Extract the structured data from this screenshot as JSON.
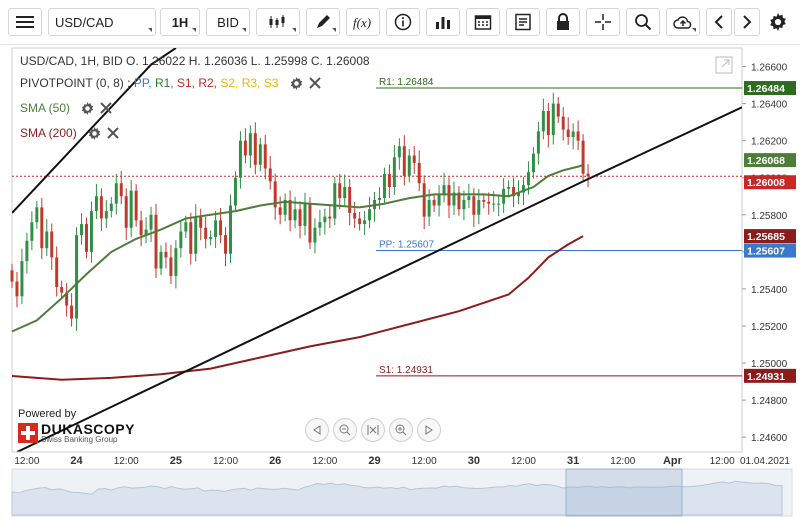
{
  "toolbar": {
    "symbol": "USD/CAD",
    "timeframe": "1H",
    "price_type": "BID"
  },
  "legend": {
    "ohlc_text": "USD/CAD, 1H, BID   O. 1.26022 H. 1.26036 L. 1.25998 C. 1.26008",
    "pivot_title": "PIVOTPOINT (0, 8)",
    "pivot_items": [
      {
        "label": "PP",
        "color": "#3a78c9"
      },
      {
        "label": "R1",
        "color": "#2e7d32"
      },
      {
        "label": "S1",
        "color": "#c62828"
      },
      {
        "label": "R2",
        "color": "#c62828"
      },
      {
        "label": "S2",
        "color": "#f4b400"
      },
      {
        "label": "R3",
        "color": "#f4b400"
      },
      {
        "label": "S3",
        "color": "#f4b400"
      }
    ],
    "sma50": "SMA (50)",
    "sma200": "SMA (200)"
  },
  "branding": {
    "powered_by": "Powered by",
    "logo": "DUKASCOPY",
    "sub": "Swiss Banking Group"
  },
  "colors": {
    "up": "#2f8f46",
    "down": "#c0392b",
    "sma50": "#4e7d3a",
    "sma200": "#8b1c1c",
    "r1": "#2e6b1f",
    "pp": "#3a78c9",
    "s1": "#8b1c1c",
    "current": "#c62828"
  },
  "chart_data": {
    "type": "candlestick",
    "symbol": "USD/CAD",
    "timeframe": "1H",
    "last": {
      "open": 1.26022,
      "high": 1.26036,
      "low": 1.25998,
      "close": 1.26008
    },
    "ylim": [
      1.2452,
      1.267
    ],
    "y_ticks": [
      "1.26600",
      "1.26400",
      "1.26200",
      "1.26000",
      "1.25800",
      "1.25600",
      "1.25400",
      "1.25200",
      "1.25000",
      "1.24800",
      "1.24600"
    ],
    "x_labels": [
      {
        "label": "12:00",
        "t": 3
      },
      {
        "label": "24",
        "t": 13
      },
      {
        "label": "12:00",
        "t": 23
      },
      {
        "label": "25",
        "t": 33
      },
      {
        "label": "12:00",
        "t": 43
      },
      {
        "label": "26",
        "t": 53
      },
      {
        "label": "12:00",
        "t": 63
      },
      {
        "label": "29",
        "t": 73
      },
      {
        "label": "12:00",
        "t": 83
      },
      {
        "label": "30",
        "t": 93
      },
      {
        "label": "12:00",
        "t": 103
      },
      {
        "label": "31",
        "t": 113
      },
      {
        "label": "12:00",
        "t": 123
      },
      {
        "label": "Apr",
        "t": 133
      },
      {
        "label": "12:00",
        "t": 143
      }
    ],
    "date_label": "01.04.2021",
    "pivots": [
      {
        "name": "R1",
        "value": 1.26484,
        "text": "R1: 1.26484",
        "badge": "1.26484"
      },
      {
        "name": "PP",
        "value": 1.25607,
        "text": "PP: 1.25607",
        "badge": "1.25607"
      },
      {
        "name": "S1",
        "value": 1.24931,
        "text": "S1: 1.24931",
        "badge": "1.24931"
      }
    ],
    "current_price": {
      "value": 1.26008,
      "badge": "1.26008"
    },
    "sma50_last": {
      "value": 1.26068,
      "badge": "1.26068"
    },
    "sma200_last": {
      "value": 1.25685,
      "badge": "1.25685"
    },
    "sma50": [
      [
        0,
        1.2517
      ],
      [
        5,
        1.2523
      ],
      [
        10,
        1.2535
      ],
      [
        15,
        1.2548
      ],
      [
        20,
        1.256
      ],
      [
        25,
        1.2567
      ],
      [
        30,
        1.2572
      ],
      [
        35,
        1.2578
      ],
      [
        40,
        1.258
      ],
      [
        45,
        1.2582
      ],
      [
        50,
        1.2585
      ],
      [
        55,
        1.2587
      ],
      [
        60,
        1.2586
      ],
      [
        65,
        1.2585
      ],
      [
        70,
        1.2584
      ],
      [
        75,
        1.2586
      ],
      [
        80,
        1.2589
      ],
      [
        85,
        1.2591
      ],
      [
        90,
        1.2591
      ],
      [
        95,
        1.2591
      ],
      [
        100,
        1.259
      ],
      [
        105,
        1.2595
      ],
      [
        108,
        1.2601
      ],
      [
        111,
        1.2604
      ],
      [
        114,
        1.2606
      ],
      [
        115,
        1.26068
      ]
    ],
    "sma200": [
      [
        0,
        1.2493
      ],
      [
        10,
        1.2491
      ],
      [
        20,
        1.2492
      ],
      [
        30,
        1.2494
      ],
      [
        40,
        1.2497
      ],
      [
        50,
        1.2503
      ],
      [
        60,
        1.2509
      ],
      [
        70,
        1.2514
      ],
      [
        80,
        1.2521
      ],
      [
        90,
        1.2528
      ],
      [
        100,
        1.2537
      ],
      [
        104,
        1.2546
      ],
      [
        108,
        1.2557
      ],
      [
        112,
        1.2564
      ],
      [
        115,
        1.25685
      ]
    ],
    "trendlines": [
      {
        "name": "lower-channel",
        "points": [
          [
            1,
            1.2452
          ],
          [
            115,
            1.2598
          ],
          [
            147,
            1.2638
          ]
        ]
      },
      {
        "name": "upper-channel",
        "points": [
          [
            0,
            1.2581
          ],
          [
            28,
            1.2661
          ],
          [
            33,
            1.267
          ]
        ]
      }
    ],
    "closes": [
      1.2544,
      1.2536,
      1.2555,
      1.2566,
      1.2576,
      1.2584,
      1.2562,
      1.2571,
      1.2557,
      1.2541,
      1.2538,
      1.2531,
      1.2524,
      1.2569,
      1.2575,
      1.256,
      1.2582,
      1.259,
      1.2578,
      1.2582,
      1.2586,
      1.2597,
      1.259,
      1.2573,
      1.2593,
      1.2577,
      1.2569,
      1.2572,
      1.258,
      1.2551,
      1.256,
      1.2557,
      1.2547,
      1.2562,
      1.2571,
      1.2576,
      1.2559,
      1.2579,
      1.2573,
      1.2567,
      1.2568,
      1.2577,
      1.2569,
      1.2559,
      1.2585,
      1.26,
      1.262,
      1.2612,
      1.2624,
      1.2607,
      1.2618,
      1.2605,
      1.2598,
      1.2584,
      1.258,
      1.2588,
      1.2577,
      1.2583,
      1.2574,
      1.2586,
      1.2565,
      1.2573,
      1.2576,
      1.2579,
      1.2578,
      1.2597,
      1.2589,
      1.2595,
      1.2581,
      1.2578,
      1.2575,
      1.2577,
      1.2583,
      1.2588,
      1.2589,
      1.2602,
      1.2595,
      1.2611,
      1.2617,
      1.2601,
      1.2612,
      1.2608,
      1.2597,
      1.2579,
      1.2588,
      1.2585,
      1.2591,
      1.2596,
      1.2585,
      1.2592,
      1.2583,
      1.2588,
      1.259,
      1.258,
      1.2588,
      1.2587,
      1.2586,
      1.2586,
      1.2586,
      1.2594,
      1.2595,
      1.259,
      1.2592,
      1.2596,
      1.2603,
      1.2613,
      1.2625,
      1.2636,
      1.2623,
      1.264,
      1.2633,
      1.2626,
      1.2622,
      1.2625,
      1.262,
      1.26022,
      1.26008
    ]
  }
}
